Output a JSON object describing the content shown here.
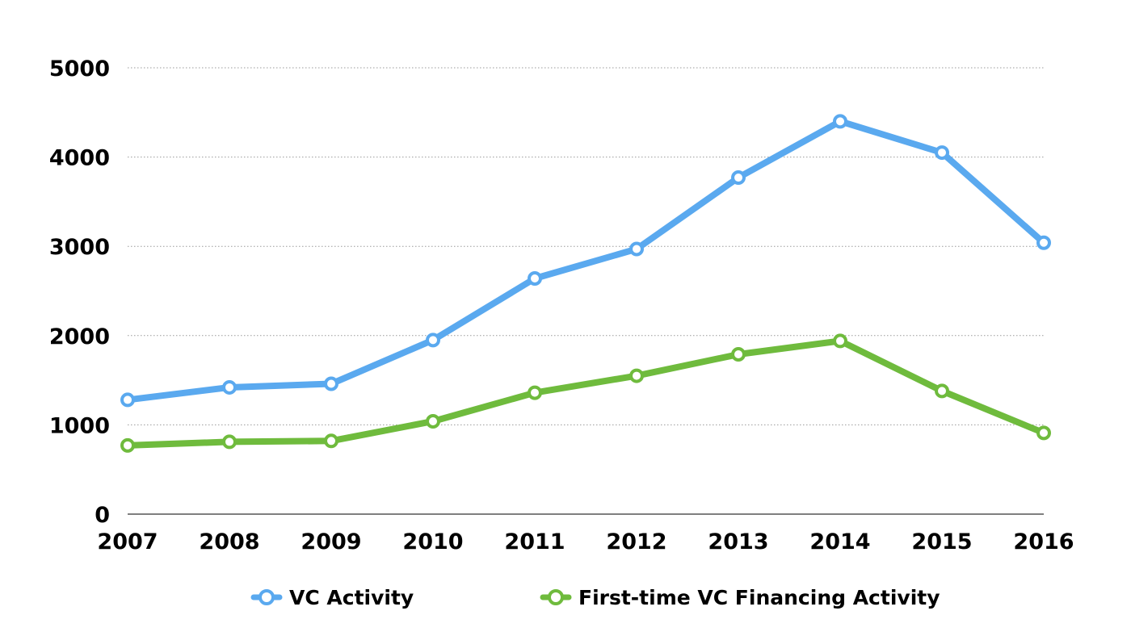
{
  "chart_data": {
    "type": "line",
    "title": "",
    "xlabel": "",
    "ylabel": "",
    "x": [
      "2007",
      "2008",
      "2009",
      "2010",
      "2011",
      "2012",
      "2013",
      "2014",
      "2015",
      "2016"
    ],
    "ylim": [
      0,
      5000
    ],
    "yticks": [
      0,
      1000,
      2000,
      3000,
      4000,
      5000
    ],
    "ytick_labels": [
      "0",
      "1000",
      "2000",
      "3000",
      "4000",
      "5000"
    ],
    "grid": "horizontal dotted",
    "legend_position": "bottom",
    "series": [
      {
        "name": "VC Activity",
        "color": "#5aa9ef",
        "values": [
          1280,
          1420,
          1460,
          1950,
          2640,
          2970,
          3770,
          4400,
          4050,
          3040
        ]
      },
      {
        "name": "First-time VC Financing Activity",
        "color": "#6fbb3d",
        "values": [
          770,
          810,
          820,
          1040,
          1360,
          1550,
          1790,
          1940,
          1380,
          910
        ]
      }
    ]
  }
}
